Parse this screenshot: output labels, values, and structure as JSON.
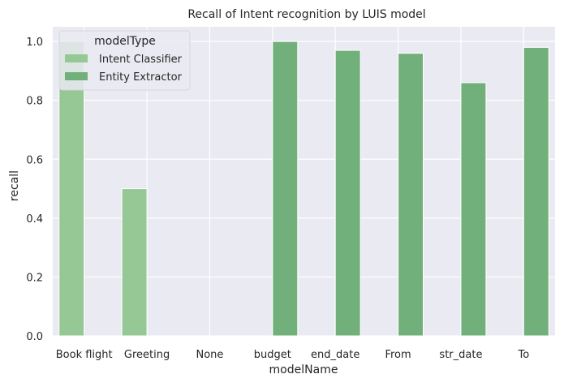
{
  "chart_data": {
    "type": "bar",
    "title": "Recall of Intent recognition by LUIS model",
    "xlabel": "modelName",
    "ylabel": "recall",
    "categories": [
      "Book flight",
      "Greeting",
      "None",
      "budget",
      "end_date",
      "From",
      "str_date",
      "To"
    ],
    "yticks": [
      "0.0",
      "0.2",
      "0.4",
      "0.6",
      "0.8",
      "1.0"
    ],
    "ylim": [
      0,
      1.05
    ],
    "grid": true,
    "legend": {
      "title": "modelType",
      "placement": "top-left"
    },
    "series": [
      {
        "name": "Intent Classifier",
        "color": "#95c894",
        "values": [
          1.0,
          0.5,
          0.0,
          null,
          null,
          null,
          null,
          null
        ]
      },
      {
        "name": "Entity Extractor",
        "color": "#72b07b",
        "values": [
          null,
          null,
          null,
          1.0,
          0.97,
          0.96,
          0.86,
          0.98
        ]
      }
    ],
    "plot_background": "#eaeaf2"
  }
}
